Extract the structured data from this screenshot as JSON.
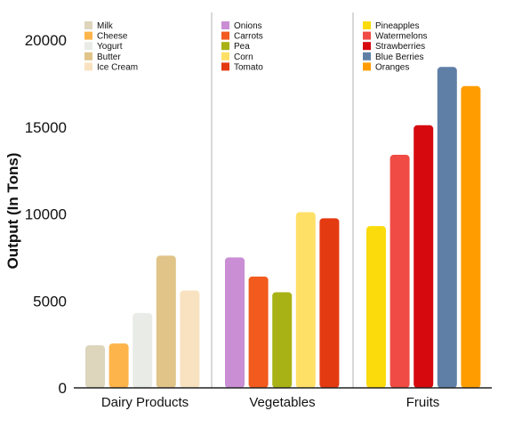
{
  "chart_data": {
    "type": "bar",
    "ylabel": "Output (In Tons)",
    "xlabel": "",
    "title": "",
    "ylim": [
      0,
      20000
    ],
    "yticks": [
      0,
      5000,
      10000,
      15000,
      20000
    ],
    "grid": false,
    "legend_placement": "top of each group panel",
    "groups": [
      {
        "category": "Dairy Products",
        "bars": [
          {
            "name": "Milk",
            "value": 2450,
            "color": "#DDD5BC"
          },
          {
            "name": "Cheese",
            "value": 2550,
            "color": "#FDB44B"
          },
          {
            "name": "Yogurt",
            "value": 4300,
            "color": "#E9ECE6"
          },
          {
            "name": "Butter",
            "value": 7600,
            "color": "#E0C488"
          },
          {
            "name": "Ice Cream",
            "value": 5600,
            "color": "#F8E2C0"
          }
        ]
      },
      {
        "category": "Vegetables",
        "bars": [
          {
            "name": "Onions",
            "value": 7500,
            "color": "#C98ED4"
          },
          {
            "name": "Carrots",
            "value": 6400,
            "color": "#F25A1E"
          },
          {
            "name": "Pea",
            "value": 5500,
            "color": "#A9B215"
          },
          {
            "name": "Corn",
            "value": 10100,
            "color": "#FFE067"
          },
          {
            "name": "Tomato",
            "value": 9750,
            "color": "#E43A12"
          }
        ]
      },
      {
        "category": "Fruits",
        "bars": [
          {
            "name": "Pineapples",
            "value": 9300,
            "color": "#FBDB0C"
          },
          {
            "name": "Watermelons",
            "value": 13400,
            "color": "#F04B45"
          },
          {
            "name": "Strawberries",
            "value": 15100,
            "color": "#D6090F"
          },
          {
            "name": "Blue Berries",
            "value": 18450,
            "color": "#5F7FA7"
          },
          {
            "name": "Oranges",
            "value": 17350,
            "color": "#FF9D00"
          }
        ]
      }
    ]
  }
}
